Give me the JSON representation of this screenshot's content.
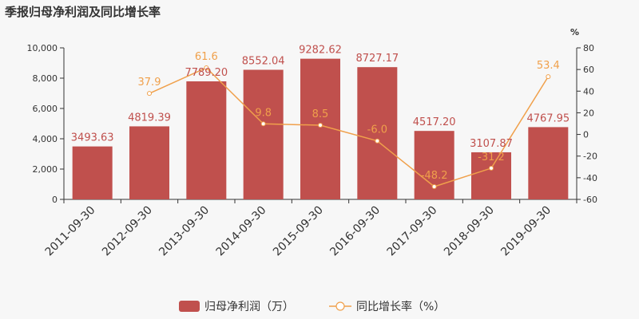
{
  "chart_data": {
    "type": "bar",
    "title": "季报归母净利润及同比增长率",
    "categories": [
      "2011-09-30",
      "2012-09-30",
      "2013-09-30",
      "2014-09-30",
      "2015-09-30",
      "2016-09-30",
      "2017-09-30",
      "2018-09-30",
      "2019-09-30"
    ],
    "series": [
      {
        "name": "归母净利润（万）",
        "type": "bar",
        "axis": "left",
        "values": [
          3493.63,
          4819.39,
          7789.2,
          8552.04,
          9282.62,
          8727.17,
          4517.2,
          3107.87,
          4767.95
        ],
        "labels": [
          "3493.63",
          "4819.39",
          "7789.20",
          "8552.04",
          "9282.62",
          "8727.17",
          "4517.20",
          "3107.87",
          "4767.95"
        ]
      },
      {
        "name": "同比增长率（%）",
        "type": "line",
        "axis": "right",
        "values": [
          null,
          37.9,
          61.6,
          9.8,
          8.5,
          -6.0,
          -48.2,
          -31.2,
          53.4
        ],
        "labels": [
          "",
          "37.9",
          "61.6",
          "9.8",
          "8.5",
          "-6.0",
          "-48.2",
          "-31.2",
          "53.4"
        ]
      }
    ],
    "left_axis": {
      "min": 0,
      "max": 10000,
      "ticks": [
        0,
        2000,
        4000,
        6000,
        8000,
        10000
      ],
      "tick_labels": [
        "0",
        "2,000",
        "4,000",
        "6,000",
        "8,000",
        "10,000"
      ]
    },
    "right_axis": {
      "min": -60,
      "max": 80,
      "ticks": [
        -60,
        -40,
        -20,
        0,
        20,
        40,
        60,
        80
      ],
      "tick_labels": [
        "-60",
        "-40",
        "-20",
        "0",
        "20",
        "40",
        "60",
        "80"
      ],
      "unit": "%"
    },
    "legend_position": "bottom-center",
    "grid": false,
    "colors": {
      "bar": "#c0504d",
      "line": "#f0a04b",
      "axis": "#333333"
    }
  }
}
